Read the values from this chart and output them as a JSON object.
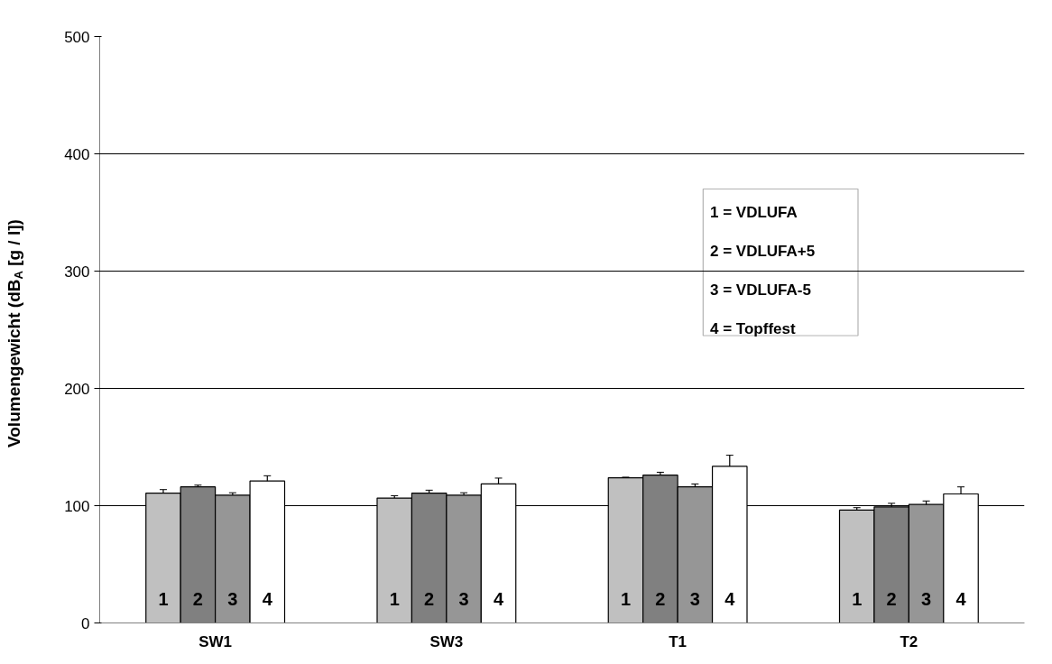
{
  "chart_data": {
    "type": "bar",
    "ylabel": "Volumengewicht (dB$_{A}$ [g / l])",
    "categories": [
      "SW1",
      "SW3",
      "T1",
      "T2"
    ],
    "series": [
      {
        "name": "1",
        "color": "#c0c0c0",
        "values": [
          110.7,
          106.5,
          123.8,
          96.3
        ],
        "errors": [
          3,
          2,
          0.5,
          2
        ]
      },
      {
        "name": "2",
        "color": "#808080",
        "values": [
          116,
          110.7,
          126,
          99
        ],
        "errors": [
          1.5,
          2.5,
          2.5,
          3
        ]
      },
      {
        "name": "3",
        "color": "#969696",
        "values": [
          109,
          109,
          116,
          101
        ],
        "errors": [
          2,
          2,
          2.5,
          3
        ]
      },
      {
        "name": "4",
        "color": "#ffffff",
        "values": [
          121,
          118.5,
          133.5,
          110
        ],
        "errors": [
          4.5,
          5,
          9.5,
          6
        ]
      }
    ],
    "ylim": [
      0,
      500
    ],
    "yticks": [
      0,
      100,
      200,
      300,
      400,
      500
    ],
    "grid": "y",
    "annotations": [
      "1 = VDLUFA",
      "2 = VDLUFA+5",
      "3 = VDLUFA-5",
      "4 = Topffest"
    ]
  }
}
